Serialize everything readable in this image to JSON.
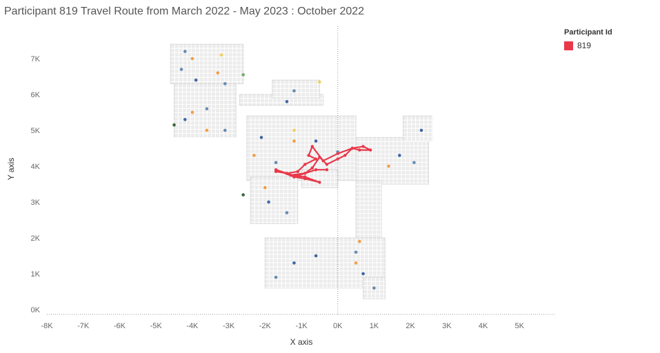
{
  "title": "Participant 819 Travel Route from March 2022 - May 2023 :  October 2022",
  "legend": {
    "title": "Participant Id",
    "items": [
      {
        "label": "819",
        "color": "#e8394a"
      }
    ]
  },
  "chart_data": {
    "type": "scatter",
    "title": "Participant 819 Travel Route from March 2022 - May 2023 :  October 2022",
    "xlabel": "X axis",
    "ylabel": "Y axis",
    "xlim": [
      -8000,
      6000
    ],
    "ylim": [
      0,
      7800
    ],
    "x_ticks": [
      {
        "value": -8000,
        "label": "-8K"
      },
      {
        "value": -7000,
        "label": "-7K"
      },
      {
        "value": -6000,
        "label": "-6K"
      },
      {
        "value": -5000,
        "label": "-5K"
      },
      {
        "value": -4000,
        "label": "-4K"
      },
      {
        "value": -3000,
        "label": "-3K"
      },
      {
        "value": -2000,
        "label": "-2K"
      },
      {
        "value": -1000,
        "label": "-1K"
      },
      {
        "value": 0,
        "label": "0K"
      },
      {
        "value": 1000,
        "label": "1K"
      },
      {
        "value": 2000,
        "label": "2K"
      },
      {
        "value": 3000,
        "label": "3K"
      },
      {
        "value": 4000,
        "label": "4K"
      },
      {
        "value": 5000,
        "label": "5K"
      }
    ],
    "y_ticks": [
      {
        "value": 0,
        "label": "0K"
      },
      {
        "value": 1000,
        "label": "1K"
      },
      {
        "value": 2000,
        "label": "2K"
      },
      {
        "value": 3000,
        "label": "3K"
      },
      {
        "value": 4000,
        "label": "4K"
      },
      {
        "value": 5000,
        "label": "5K"
      },
      {
        "value": 6000,
        "label": "6K"
      },
      {
        "value": 7000,
        "label": "7K"
      }
    ],
    "grid": false,
    "reference_line_x": 0,
    "map_regions": [
      {
        "x0": -4600,
        "x1": -2600,
        "y0": 6300,
        "y1": 7400
      },
      {
        "x0": -4500,
        "x1": -2800,
        "y0": 4800,
        "y1": 6300
      },
      {
        "x0": -2700,
        "x1": -400,
        "y0": 5700,
        "y1": 6000
      },
      {
        "x0": -1800,
        "x1": -500,
        "y0": 5900,
        "y1": 6400
      },
      {
        "x0": -2500,
        "x1": 500,
        "y0": 3600,
        "y1": 5400
      },
      {
        "x0": -2400,
        "x1": -1100,
        "y0": 2400,
        "y1": 3700
      },
      {
        "x0": -1000,
        "x1": 0,
        "y0": 3400,
        "y1": 3900
      },
      {
        "x0": 500,
        "x1": 2500,
        "y0": 3500,
        "y1": 4800
      },
      {
        "x0": 1800,
        "x1": 2600,
        "y0": 4700,
        "y1": 5400
      },
      {
        "x0": 500,
        "x1": 1200,
        "y0": 1900,
        "y1": 3600
      },
      {
        "x0": -2000,
        "x1": 1300,
        "y0": 600,
        "y1": 2000
      },
      {
        "x0": 700,
        "x1": 1300,
        "y0": 300,
        "y1": 900
      }
    ],
    "background_points": [
      {
        "x": -4200,
        "y": 7200,
        "color": "#4e79a7"
      },
      {
        "x": -4000,
        "y": 7000,
        "color": "#f28e2b"
      },
      {
        "x": -3200,
        "y": 7100,
        "color": "#edc948"
      },
      {
        "x": -4300,
        "y": 6700,
        "color": "#4e79a7"
      },
      {
        "x": -3300,
        "y": 6600,
        "color": "#f28e2b"
      },
      {
        "x": -2600,
        "y": 6550,
        "color": "#59a14f"
      },
      {
        "x": -3900,
        "y": 6400,
        "color": "#1f4e99"
      },
      {
        "x": -3100,
        "y": 6300,
        "color": "#4e79a7"
      },
      {
        "x": -4500,
        "y": 5150,
        "color": "#1a4d1a"
      },
      {
        "x": -4000,
        "y": 5500,
        "color": "#f28e2b"
      },
      {
        "x": -4200,
        "y": 5300,
        "color": "#1f4e99"
      },
      {
        "x": -3600,
        "y": 5600,
        "color": "#4e79a7"
      },
      {
        "x": -3600,
        "y": 5000,
        "color": "#f28e2b"
      },
      {
        "x": -3100,
        "y": 5000,
        "color": "#4e79a7"
      },
      {
        "x": -500,
        "y": 6350,
        "color": "#edc948"
      },
      {
        "x": -1200,
        "y": 6100,
        "color": "#4e79a7"
      },
      {
        "x": -1400,
        "y": 5800,
        "color": "#1f4e99"
      },
      {
        "x": -1200,
        "y": 5000,
        "color": "#edc948"
      },
      {
        "x": -1200,
        "y": 4700,
        "color": "#f28e2b"
      },
      {
        "x": -2100,
        "y": 4800,
        "color": "#1f4e99"
      },
      {
        "x": -2300,
        "y": 4300,
        "color": "#f28e2b"
      },
      {
        "x": -1700,
        "y": 4100,
        "color": "#4e79a7"
      },
      {
        "x": -600,
        "y": 4700,
        "color": "#1f4e99"
      },
      {
        "x": 0,
        "y": 4400,
        "color": "#4e79a7"
      },
      {
        "x": -2600,
        "y": 3200,
        "color": "#1a4d1a"
      },
      {
        "x": -2000,
        "y": 3400,
        "color": "#f28e2b"
      },
      {
        "x": -1900,
        "y": 3000,
        "color": "#1f4e99"
      },
      {
        "x": -1400,
        "y": 2700,
        "color": "#4e79a7"
      },
      {
        "x": 1400,
        "y": 4000,
        "color": "#f28e2b"
      },
      {
        "x": 1700,
        "y": 4300,
        "color": "#1f4e99"
      },
      {
        "x": 2100,
        "y": 4100,
        "color": "#4e79a7"
      },
      {
        "x": 2300,
        "y": 5000,
        "color": "#1f4e99"
      },
      {
        "x": 600,
        "y": 1900,
        "color": "#f28e2b"
      },
      {
        "x": 500,
        "y": 1600,
        "color": "#4e79a7"
      },
      {
        "x": 500,
        "y": 1300,
        "color": "#f28e2b"
      },
      {
        "x": 700,
        "y": 1000,
        "color": "#1f4e99"
      },
      {
        "x": -1200,
        "y": 1300,
        "color": "#1f4e99"
      },
      {
        "x": -1700,
        "y": 900,
        "color": "#4e79a7"
      },
      {
        "x": 1000,
        "y": 600,
        "color": "#4e79a7"
      },
      {
        "x": -600,
        "y": 1500,
        "color": "#1f4e99"
      }
    ],
    "series": [
      {
        "name": "819",
        "color": "#e8394a",
        "route": [
          [
            -1700,
            3850
          ],
          [
            -1400,
            3800
          ],
          [
            -1200,
            3700
          ],
          [
            -900,
            3650
          ],
          [
            -500,
            3550
          ],
          [
            -900,
            3700
          ],
          [
            -1300,
            3750
          ],
          [
            -900,
            3800
          ],
          [
            -700,
            3950
          ],
          [
            -500,
            4250
          ],
          [
            -300,
            4050
          ],
          [
            0,
            4200
          ],
          [
            200,
            4300
          ],
          [
            400,
            4500
          ],
          [
            600,
            4450
          ],
          [
            900,
            4450
          ],
          [
            700,
            4550
          ],
          [
            400,
            4500
          ],
          [
            0,
            4350
          ],
          [
            -400,
            4150
          ],
          [
            -700,
            4550
          ],
          [
            -800,
            4300
          ],
          [
            -600,
            4200
          ],
          [
            -900,
            4050
          ],
          [
            -1100,
            3850
          ],
          [
            -1400,
            3800
          ],
          [
            -1700,
            3900
          ],
          [
            -1200,
            3700
          ],
          [
            -600,
            3900
          ],
          [
            -300,
            3900
          ]
        ]
      }
    ]
  }
}
